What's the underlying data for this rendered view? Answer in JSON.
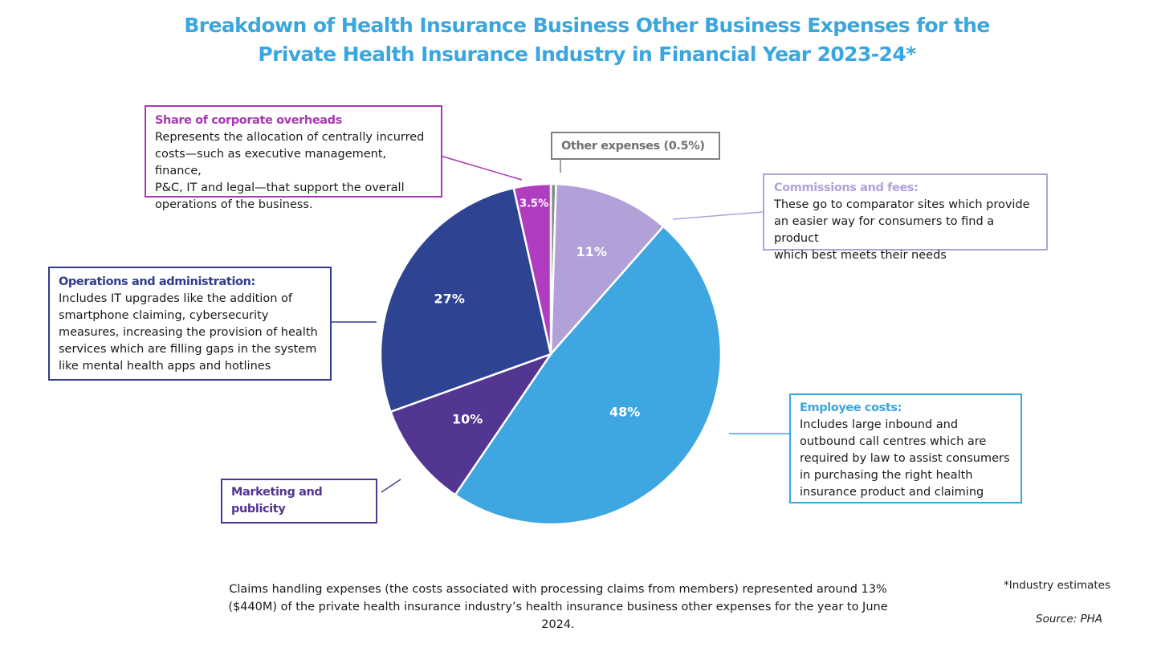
{
  "chart_data": {
    "type": "pie",
    "title_line1": "Breakdown of Health Insurance Business Other Business Expenses for the",
    "title_line2": "Private Health Insurance Industry in Financial Year 2023-24*",
    "slices": [
      {
        "key": "other",
        "name": "Other expenses",
        "value": 0.5,
        "label": "",
        "color": "#8a8a8a"
      },
      {
        "key": "commissions",
        "name": "Commissions and fees",
        "value": 11,
        "label": "11%",
        "color": "#b2a1d9"
      },
      {
        "key": "employee",
        "name": "Employee costs",
        "value": 48,
        "label": "48%",
        "color": "#3ea6e1"
      },
      {
        "key": "marketing",
        "name": "Marketing and publicity",
        "value": 10,
        "label": "10%",
        "color": "#533592"
      },
      {
        "key": "operations",
        "name": "Operations and administration",
        "value": 27,
        "label": "27%",
        "color": "#2e4492"
      },
      {
        "key": "corporate",
        "name": "Share of corporate overheads",
        "value": 3.5,
        "label": "3.5%",
        "color": "#b03cc0"
      }
    ]
  },
  "annotations": {
    "corporate": {
      "heading": "Share of corporate overheads",
      "lines": [
        "Represents the allocation of centrally incurred",
        "costs—such as executive management, finance,",
        "P&C, IT and legal—that support the overall",
        "operations of the business."
      ]
    },
    "other": {
      "heading": "Other expenses (0.5%)"
    },
    "commissions": {
      "heading": "Commissions and fees:",
      "lines": [
        "These go to comparator sites which provide",
        "an easier way for consumers to find a product",
        "which best meets their needs"
      ]
    },
    "operations": {
      "heading": "Operations and administration:",
      "lines": [
        "Includes IT upgrades like the addition of",
        "smartphone claiming, cybersecurity",
        "measures, increasing the provision of health",
        "services which are filling gaps in the system",
        "like mental health apps and hotlines"
      ]
    },
    "employee": {
      "heading": "Employee costs:",
      "lines": [
        "Includes large inbound and",
        "outbound call centres which are",
        "required by law to assist consumers",
        "in purchasing the right health",
        "insurance product and claiming"
      ]
    },
    "marketing": {
      "heading_lines": [
        "Marketing and",
        "publicity"
      ]
    }
  },
  "footnote": {
    "line1": "Claims handling expenses (the costs associated with processing claims from members) represented around 13%",
    "line2": "($440M) of the private health insurance industry’s health insurance business other expenses for the year to June 2024."
  },
  "estimate_note": "*Industry estimates",
  "source": "Source: PHA"
}
